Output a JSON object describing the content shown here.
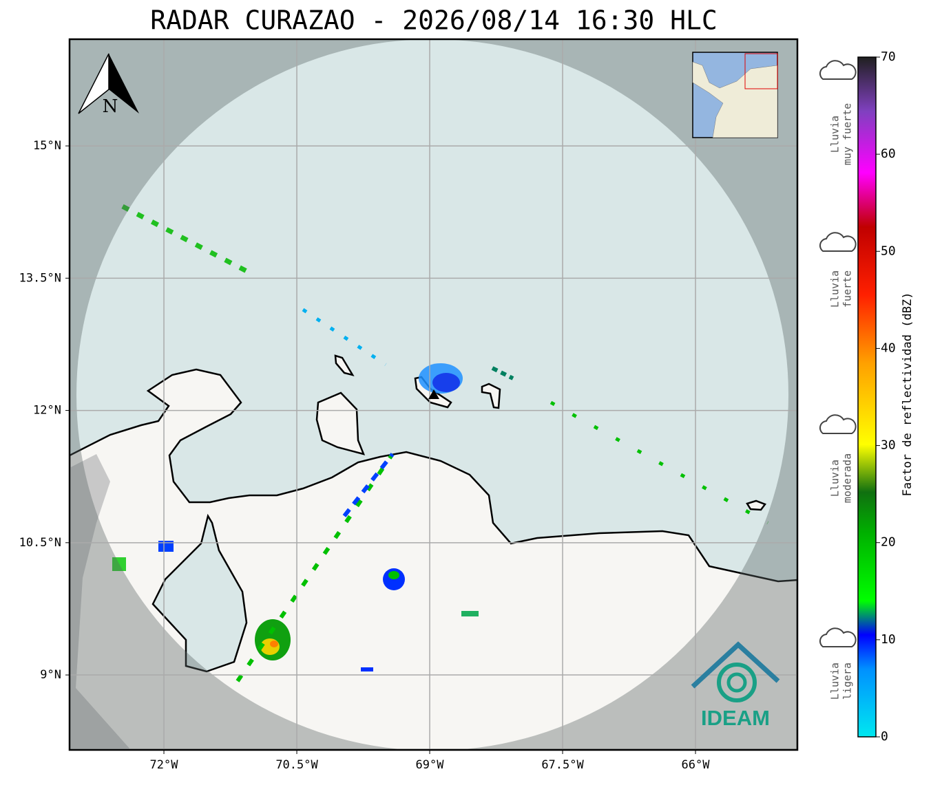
{
  "title": "RADAR CURAZAO - 2026/08/14 16:30 HLC",
  "map": {
    "xlim": [
      -73.065,
      -64.85
    ],
    "ylim": [
      8.15,
      16.21
    ],
    "xticks": [
      {
        "value": -72,
        "label": "72°W"
      },
      {
        "value": -70.5,
        "label": "70.5°W"
      },
      {
        "value": -69,
        "label": "69°W"
      },
      {
        "value": -67.5,
        "label": "67.5°W"
      },
      {
        "value": -66,
        "label": "66°W"
      }
    ],
    "yticks": [
      {
        "value": 15,
        "label": "15°N"
      },
      {
        "value": 13.5,
        "label": "13.5°N"
      },
      {
        "value": 12,
        "label": "12°N"
      },
      {
        "value": 10.5,
        "label": "10.5°N"
      },
      {
        "value": 9,
        "label": "9°N"
      }
    ],
    "north": "N"
  },
  "colorbar": {
    "label": "Factor de reflectividad (dBZ)",
    "lim": [
      0,
      70
    ],
    "ticks": [
      0,
      10,
      20,
      30,
      40,
      50,
      60,
      70
    ]
  },
  "legend": [
    [
      "Lluvia",
      "muy fuerte"
    ],
    [
      "Lluvia",
      "fuerte"
    ],
    [
      "Lluvia",
      "moderada"
    ],
    [
      "Lluvia",
      "ligera"
    ]
  ],
  "logo": "IDEAM"
}
